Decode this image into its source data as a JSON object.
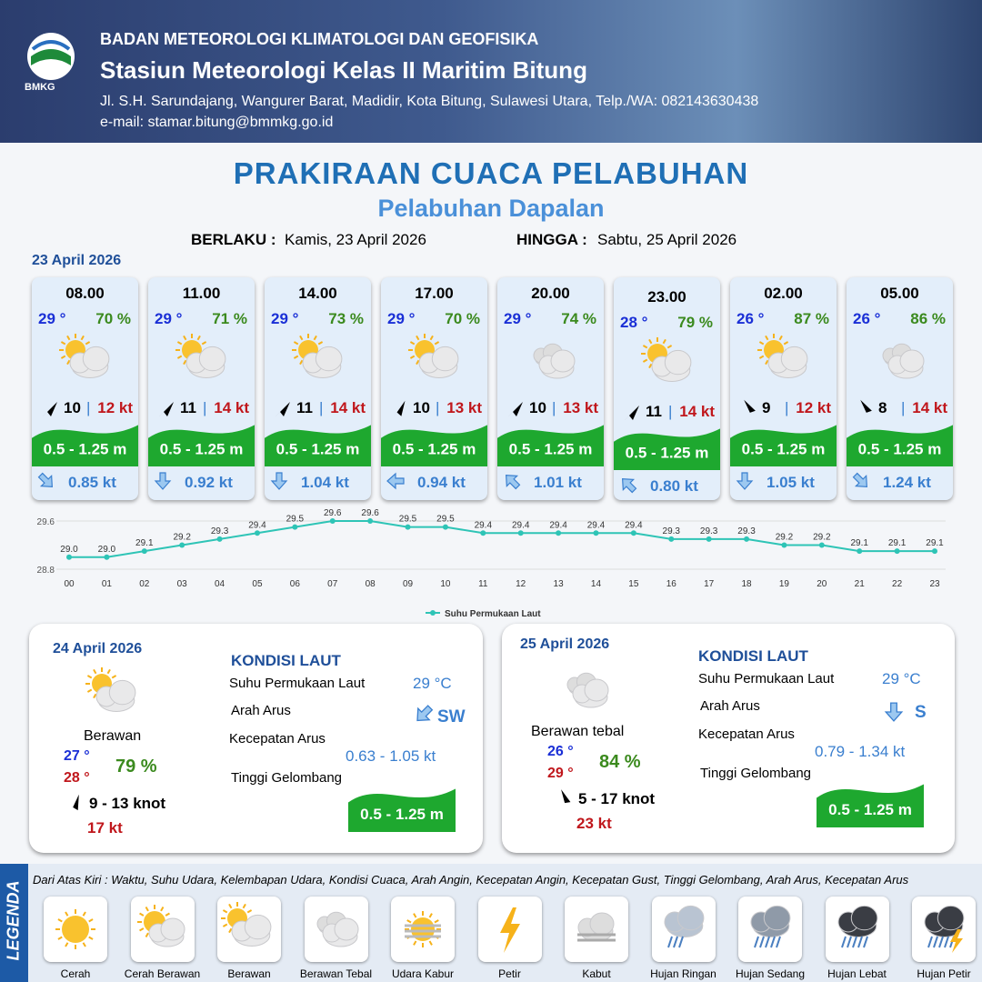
{
  "header": {
    "logo": "BMKG",
    "org": "BADAN METEOROLOGI KLIMATOLOGI DAN GEOFISIKA",
    "station": "Stasiun Meteorologi Kelas II Maritim Bitung",
    "address": "Jl. S.H. Sarundajang, Wangurer Barat, Madidir, Kota Bitung, Sulawesi Utara, Telp./WA: 082143630438",
    "email": "e-mail: stamar.bitung@bmmkg.go.id"
  },
  "title": "PRAKIRAAN CUACA PELABUHAN",
  "subtitle": "Pelabuhan Dapalan",
  "validity": {
    "from_label": "BERLAKU :",
    "from": "Kamis, 23 April 2026",
    "to_label": "HINGGA :",
    "to": "Sabtu, 25 April 2026"
  },
  "day1_date": "23 April 2026",
  "hourly": [
    {
      "time": "08.00",
      "temp": "29 °",
      "humidity": "70 %",
      "wind": "10",
      "gust": "12 kt",
      "wave": "0.5 - 1.25 m",
      "current": "0.85 kt"
    },
    {
      "time": "11.00",
      "temp": "29 °",
      "humidity": "71 %",
      "wind": "11",
      "gust": "14 kt",
      "wave": "0.5 - 1.25 m",
      "current": "0.92 kt"
    },
    {
      "time": "14.00",
      "temp": "29 °",
      "humidity": "73 %",
      "wind": "11",
      "gust": "14 kt",
      "wave": "0.5 - 1.25 m",
      "current": "1.04 kt"
    },
    {
      "time": "17.00",
      "temp": "29 °",
      "humidity": "70 %",
      "wind": "10",
      "gust": "13 kt",
      "wave": "0.5 - 1.25 m",
      "current": "0.94 kt"
    },
    {
      "time": "20.00",
      "temp": "29 °",
      "humidity": "74 %",
      "wind": "10",
      "gust": "13 kt",
      "wave": "0.5 - 1.25 m",
      "current": "1.01 kt"
    },
    {
      "time": "23.00",
      "temp": "28 °",
      "humidity": "79 %",
      "wind": "11",
      "gust": "14 kt",
      "wave": "0.5 - 1.25 m",
      "current": "0.80 kt"
    },
    {
      "time": "02.00",
      "temp": "26 °",
      "humidity": "87 %",
      "wind": "9",
      "gust": "12 kt",
      "wave": "0.5 - 1.25 m",
      "current": "1.05 kt"
    },
    {
      "time": "05.00",
      "temp": "26 °",
      "humidity": "86 %",
      "wind": "8",
      "gust": "14 kt",
      "wave": "0.5 - 1.25 m",
      "current": "1.24 kt"
    }
  ],
  "chart_data": {
    "type": "line",
    "categories": [
      "00",
      "01",
      "02",
      "03",
      "04",
      "05",
      "06",
      "07",
      "08",
      "09",
      "10",
      "11",
      "12",
      "13",
      "14",
      "15",
      "16",
      "17",
      "18",
      "19",
      "20",
      "21",
      "22",
      "23"
    ],
    "series": [
      {
        "name": "Suhu Permukaan Laut",
        "color": "#2ec4b6",
        "values": [
          29.0,
          29.0,
          29.1,
          29.2,
          29.3,
          29.4,
          29.5,
          29.6,
          29.6,
          29.5,
          29.5,
          29.4,
          29.4,
          29.4,
          29.4,
          29.4,
          29.3,
          29.3,
          29.3,
          29.2,
          29.2,
          29.1,
          29.1,
          29.1
        ],
        "value_labels": [
          "29.0",
          "29.0",
          "29.1",
          "29.2",
          "29.3",
          "29.4",
          "29.5",
          "29.6",
          "29.6",
          "29.5",
          "29.5",
          "29.4",
          "29.4",
          "29.4",
          "29.4",
          "29.4",
          "29.3",
          "29.3",
          "29.3",
          "29.2",
          "29.2",
          "29.1",
          "29.1",
          "29.1"
        ]
      }
    ],
    "ylim": [
      28.8,
      29.6
    ],
    "yticks": [
      28.8,
      29.6
    ],
    "grid": true,
    "legend": "bottom"
  },
  "days": [
    {
      "date": "24 April 2026",
      "condition": "Berawan",
      "temp_min": "27 °",
      "temp_max": "28 °",
      "humidity": "79 %",
      "wind": "9  - 13 knot",
      "gust": "17 kt",
      "section": "KONDISI LAUT",
      "sst_label": "Suhu Permukaan Laut",
      "sst": "29 °C",
      "dir_label": "Arah Arus",
      "dir": "SW",
      "speed_label": "Kecepatan Arus",
      "speed": "0.63 - 1.05 kt",
      "wave_label": "Tinggi Gelombang",
      "wave": "0.5 - 1.25 m"
    },
    {
      "date": "25 April 2026",
      "condition": "Berawan tebal",
      "temp_min": "26 °",
      "temp_max": "29 °",
      "humidity": "84 %",
      "wind": "5  - 17 knot",
      "gust": "23 kt",
      "section": "KONDISI LAUT",
      "sst_label": "Suhu Permukaan Laut",
      "sst": "29 °C",
      "dir_label": "Arah Arus",
      "dir": "S",
      "speed_label": "Kecepatan Arus",
      "speed": "0.79 - 1.34 kt",
      "wave_label": "Tinggi Gelombang",
      "wave": "0.5 - 1.25 m"
    }
  ],
  "legend": {
    "title": "LEGENDA",
    "description": "Dari Atas Kiri : Waktu, Suhu Udara, Kelembapan Udara, Kondisi Cuaca, Arah Angin, Kecepatan Angin, Kecepatan Gust, Tinggi Gelombang, Arah Arus, Kecepatan Arus",
    "items": [
      "Cerah",
      "Cerah Berawan",
      "Berawan",
      "Berawan Tebal",
      "Udara Kabur",
      "Petir",
      "Kabut",
      "Hujan Ringan",
      "Hujan Sedang",
      "Hujan Lebat",
      "Hujan Petir"
    ]
  }
}
